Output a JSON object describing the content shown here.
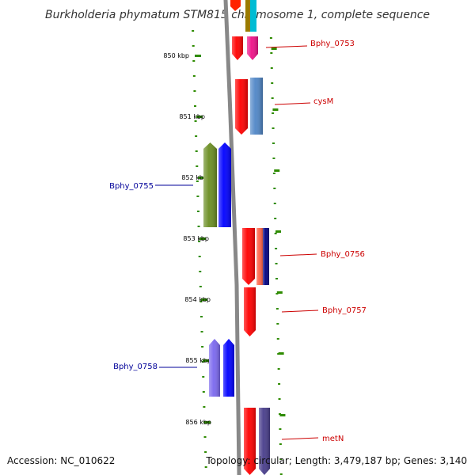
{
  "title": "Burkholderia phymatum STM815 chromosome 1, complete sequence",
  "accession": "Accession: NC_010622",
  "summary": "Topology: circular; Length: 3,479,187 bp; Genes: 3,140",
  "ruler": {
    "ticks": [
      {
        "label": "850 kbp",
        "kbp": 850
      },
      {
        "label": "851 kbp",
        "kbp": 851
      },
      {
        "label": "852 kbp",
        "kbp": 852
      },
      {
        "label": "853 kbp",
        "kbp": 853
      },
      {
        "label": "854 kbp",
        "kbp": 854
      },
      {
        "label": "855 kbp",
        "kbp": 855
      },
      {
        "label": "856 kbp",
        "kbp": 856
      }
    ]
  },
  "colors": {
    "forward_label": "#cc0000",
    "reverse_label": "#000099",
    "backbone": "#888888",
    "ruler": "#2e8b00"
  },
  "genes": [
    {
      "name": "Bphy_0753",
      "strand": "forward",
      "colors": [
        "#ff0000",
        "#ee1188"
      ]
    },
    {
      "name": "cysM",
      "strand": "forward",
      "colors": [
        "#ff0000",
        "#4f86c6"
      ]
    },
    {
      "name": "Bphy_0755",
      "strand": "reverse",
      "colors": [
        "#6b8e23",
        "#0000ff"
      ]
    },
    {
      "name": "Bphy_0756",
      "strand": "forward",
      "colors": [
        "#ff0000",
        "#ff6347",
        "#000080"
      ]
    },
    {
      "name": "Bphy_0757",
      "strand": "forward",
      "colors": [
        "#ff0000"
      ]
    },
    {
      "name": "Bphy_0758",
      "strand": "reverse",
      "colors": [
        "#7b68ee",
        "#0000ff"
      ]
    },
    {
      "name": "metN",
      "strand": "forward",
      "colors": [
        "#ff0000",
        "#483d8b"
      ]
    }
  ]
}
